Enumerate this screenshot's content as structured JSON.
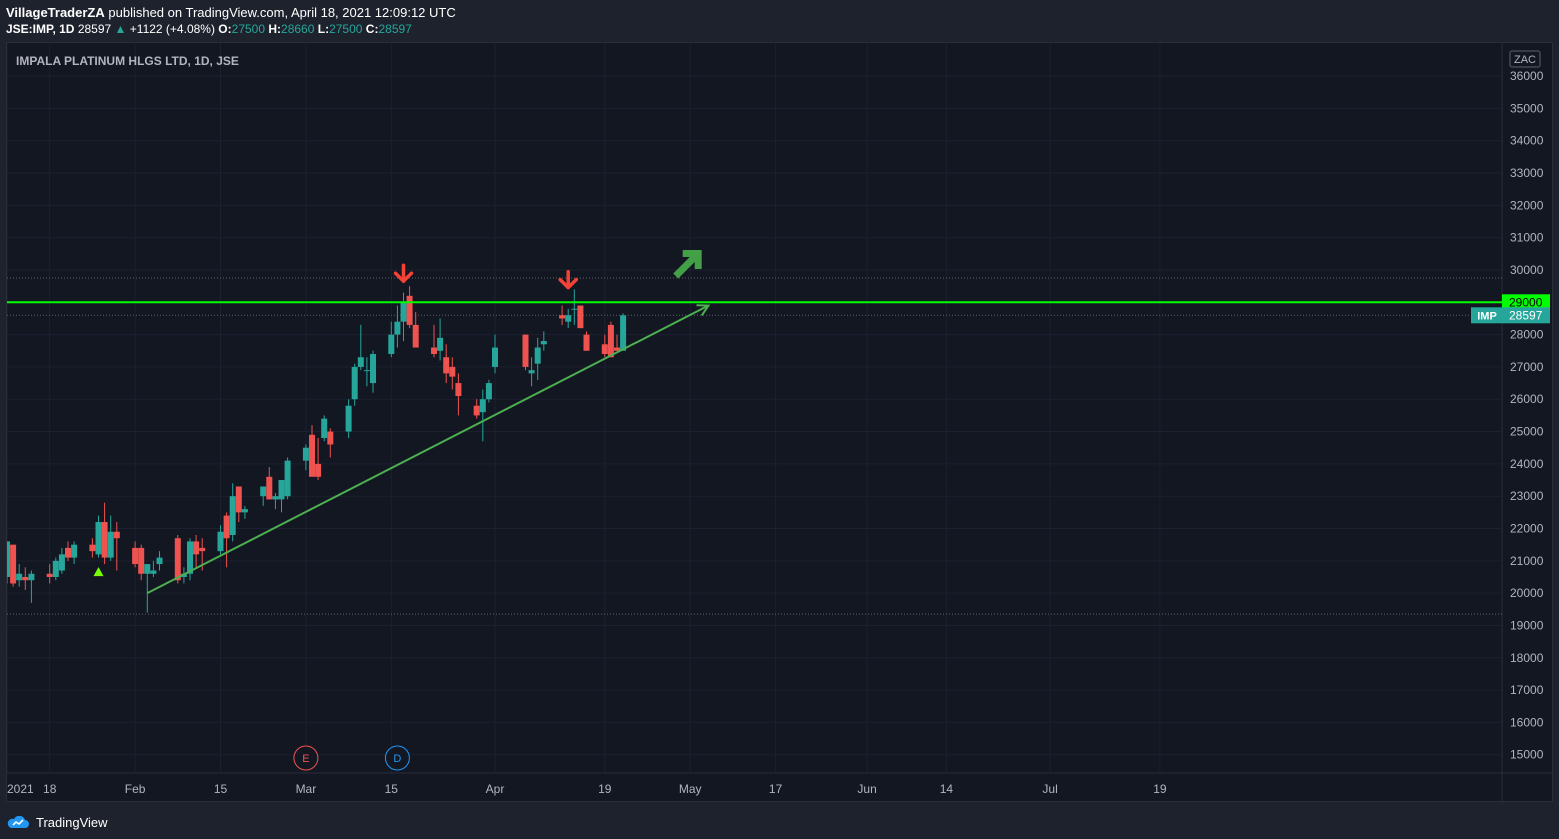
{
  "header": {
    "author": "VillageTraderZA",
    "published_text": "published on TradingView.com, April 18, 2021 12:09:12 UTC",
    "symbol": "JSE:IMP, 1D",
    "last": "28597",
    "change": "+1122 (+4.08%)",
    "o_label": "O:",
    "o_value": "27500",
    "h_label": "H:",
    "h_value": "28660",
    "l_label": "L:",
    "l_value": "27500",
    "c_label": "C:",
    "c_value": "28597"
  },
  "footer": {
    "brand": "TradingView"
  },
  "colors": {
    "up": "#26a69a",
    "down": "#ef5350",
    "background": "#131722",
    "resistance": "#00ff00",
    "trendline": "#4caf50",
    "arrow_down": "#f44336",
    "arrow_up": "#43a047"
  },
  "chart_data": {
    "type": "candlestick",
    "title": "IMPALA PLATINUM HLGS LTD, 1D, JSE",
    "currency": "ZAC",
    "ylim": [
      14500,
      36500
    ],
    "y_ticks": [
      15000,
      16000,
      17000,
      18000,
      19000,
      20000,
      21000,
      22000,
      23000,
      24000,
      25000,
      26000,
      27000,
      28000,
      29000,
      30000,
      31000,
      32000,
      33000,
      34000,
      35000,
      36000
    ],
    "x_tick_labels": [
      "2021",
      "18",
      "Feb",
      "15",
      "Mar",
      "15",
      "Apr",
      "19",
      "May",
      "17",
      "Jun",
      "14",
      "Jul",
      "19"
    ],
    "candles": [
      {
        "d": "2021-01-11",
        "o": 20500,
        "h": 21600,
        "l": 20300,
        "c": 21600
      },
      {
        "d": "2021-01-12",
        "o": 21500,
        "h": 21500,
        "l": 20200,
        "c": 20300
      },
      {
        "d": "2021-01-13",
        "o": 20400,
        "h": 20900,
        "l": 20200,
        "c": 20600
      },
      {
        "d": "2021-01-14",
        "o": 20500,
        "h": 20800,
        "l": 20100,
        "c": 20400
      },
      {
        "d": "2021-01-15",
        "o": 20400,
        "h": 20700,
        "l": 19700,
        "c": 20600
      },
      {
        "d": "2021-01-18",
        "o": 20600,
        "h": 20900,
        "l": 20300,
        "c": 20500
      },
      {
        "d": "2021-01-19",
        "o": 20500,
        "h": 21100,
        "l": 20400,
        "c": 21000
      },
      {
        "d": "2021-01-20",
        "o": 20700,
        "h": 21400,
        "l": 20600,
        "c": 21200
      },
      {
        "d": "2021-01-21",
        "o": 21400,
        "h": 21600,
        "l": 21000,
        "c": 21100
      },
      {
        "d": "2021-01-22",
        "o": 21100,
        "h": 21600,
        "l": 20900,
        "c": 21500
      },
      {
        "d": "2021-01-25",
        "o": 21500,
        "h": 21700,
        "l": 21100,
        "c": 21300
      },
      {
        "d": "2021-01-26",
        "o": 21200,
        "h": 22400,
        "l": 21100,
        "c": 22200
      },
      {
        "d": "2021-01-27",
        "o": 22200,
        "h": 22800,
        "l": 20900,
        "c": 21100
      },
      {
        "d": "2021-01-28",
        "o": 21100,
        "h": 22400,
        "l": 21000,
        "c": 21900
      },
      {
        "d": "2021-01-29",
        "o": 21900,
        "h": 22200,
        "l": 20700,
        "c": 21700
      },
      {
        "d": "2021-02-01",
        "o": 21400,
        "h": 21600,
        "l": 20800,
        "c": 20900
      },
      {
        "d": "2021-02-02",
        "o": 21400,
        "h": 21500,
        "l": 20400,
        "c": 20600
      },
      {
        "d": "2021-02-03",
        "o": 20600,
        "h": 20900,
        "l": 19400,
        "c": 20900
      },
      {
        "d": "2021-02-04",
        "o": 20600,
        "h": 21000,
        "l": 20500,
        "c": 20700
      },
      {
        "d": "2021-02-05",
        "o": 20900,
        "h": 21300,
        "l": 20700,
        "c": 21100
      },
      {
        "d": "2021-02-08",
        "o": 21700,
        "h": 21800,
        "l": 20300,
        "c": 20400
      },
      {
        "d": "2021-02-09",
        "o": 20500,
        "h": 20800,
        "l": 20300,
        "c": 20600
      },
      {
        "d": "2021-02-10",
        "o": 20600,
        "h": 21700,
        "l": 20400,
        "c": 21600
      },
      {
        "d": "2021-02-11",
        "o": 21600,
        "h": 21800,
        "l": 20800,
        "c": 21200
      },
      {
        "d": "2021-02-12",
        "o": 21400,
        "h": 21700,
        "l": 20700,
        "c": 21300
      },
      {
        "d": "2021-02-15",
        "o": 21300,
        "h": 22100,
        "l": 21200,
        "c": 21900
      },
      {
        "d": "2021-02-16",
        "o": 22400,
        "h": 22500,
        "l": 20800,
        "c": 21700
      },
      {
        "d": "2021-02-17",
        "o": 21800,
        "h": 23400,
        "l": 21600,
        "c": 23000
      },
      {
        "d": "2021-02-18",
        "o": 23300,
        "h": 23300,
        "l": 22200,
        "c": 22500
      },
      {
        "d": "2021-02-19",
        "o": 22500,
        "h": 22700,
        "l": 22300,
        "c": 22600
      },
      {
        "d": "2021-02-22",
        "o": 23000,
        "h": 23300,
        "l": 22700,
        "c": 23300
      },
      {
        "d": "2021-02-23",
        "o": 23600,
        "h": 23900,
        "l": 22900,
        "c": 22900
      },
      {
        "d": "2021-02-24",
        "o": 22900,
        "h": 23100,
        "l": 22600,
        "c": 23000
      },
      {
        "d": "2021-02-25",
        "o": 22900,
        "h": 23500,
        "l": 22500,
        "c": 23500
      },
      {
        "d": "2021-02-26",
        "o": 23000,
        "h": 24200,
        "l": 22900,
        "c": 24100
      },
      {
        "d": "2021-03-01",
        "o": 24100,
        "h": 24600,
        "l": 23800,
        "c": 24500
      },
      {
        "d": "2021-03-02",
        "o": 24900,
        "h": 25200,
        "l": 23700,
        "c": 23600
      },
      {
        "d": "2021-03-03",
        "o": 24000,
        "h": 24800,
        "l": 23500,
        "c": 23600
      },
      {
        "d": "2021-03-04",
        "o": 24800,
        "h": 25500,
        "l": 24700,
        "c": 25400
      },
      {
        "d": "2021-03-05",
        "o": 25000,
        "h": 25100,
        "l": 24200,
        "c": 24600
      },
      {
        "d": "2021-03-08",
        "o": 25000,
        "h": 26000,
        "l": 24800,
        "c": 25800
      },
      {
        "d": "2021-03-09",
        "o": 26000,
        "h": 27100,
        "l": 25800,
        "c": 27000
      },
      {
        "d": "2021-03-10",
        "o": 27000,
        "h": 28300,
        "l": 26900,
        "c": 27300
      },
      {
        "d": "2021-03-11",
        "o": 26900,
        "h": 27300,
        "l": 26400,
        "c": 26900
      },
      {
        "d": "2021-03-12",
        "o": 26500,
        "h": 27500,
        "l": 26200,
        "c": 27400
      },
      {
        "d": "2021-03-15",
        "o": 27400,
        "h": 28400,
        "l": 27300,
        "c": 28000
      },
      {
        "d": "2021-03-16",
        "o": 28000,
        "h": 28900,
        "l": 27600,
        "c": 28400
      },
      {
        "d": "2021-03-17",
        "o": 28400,
        "h": 29300,
        "l": 27800,
        "c": 29000
      },
      {
        "d": "2021-03-18",
        "o": 29200,
        "h": 29500,
        "l": 28200,
        "c": 28300
      },
      {
        "d": "2021-03-19",
        "o": 28300,
        "h": 28700,
        "l": 27700,
        "c": 27600
      },
      {
        "d": "2021-03-22",
        "o": 27600,
        "h": 28300,
        "l": 27300,
        "c": 27400
      },
      {
        "d": "2021-03-23",
        "o": 27500,
        "h": 28500,
        "l": 27200,
        "c": 27900
      },
      {
        "d": "2021-03-24",
        "o": 27300,
        "h": 27700,
        "l": 26500,
        "c": 26800
      },
      {
        "d": "2021-03-25",
        "o": 27000,
        "h": 27300,
        "l": 26300,
        "c": 26700
      },
      {
        "d": "2021-03-26",
        "o": 26500,
        "h": 26800,
        "l": 25500,
        "c": 26100
      },
      {
        "d": "2021-03-29",
        "o": 25800,
        "h": 26000,
        "l": 25400,
        "c": 25500
      },
      {
        "d": "2021-03-30",
        "o": 25600,
        "h": 26300,
        "l": 24700,
        "c": 26000
      },
      {
        "d": "2021-03-31",
        "o": 26000,
        "h": 26600,
        "l": 25900,
        "c": 26500
      },
      {
        "d": "2021-04-01",
        "o": 27000,
        "h": 28000,
        "l": 26800,
        "c": 27600
      },
      {
        "d": "2021-04-06",
        "o": 28000,
        "h": 28000,
        "l": 26900,
        "c": 27000
      },
      {
        "d": "2021-04-07",
        "o": 26800,
        "h": 27300,
        "l": 26400,
        "c": 26900
      },
      {
        "d": "2021-04-08",
        "o": 27100,
        "h": 27900,
        "l": 26600,
        "c": 27600
      },
      {
        "d": "2021-04-09",
        "o": 27700,
        "h": 28100,
        "l": 27500,
        "c": 27800
      },
      {
        "d": "2021-04-12",
        "o": 28600,
        "h": 28900,
        "l": 28300,
        "c": 28500
      },
      {
        "d": "2021-04-13",
        "o": 28400,
        "h": 28800,
        "l": 28200,
        "c": 28600
      },
      {
        "d": "2021-04-14",
        "o": 28800,
        "h": 29400,
        "l": 28300,
        "c": 28800
      },
      {
        "d": "2021-04-15",
        "o": 28900,
        "h": 28900,
        "l": 28200,
        "c": 28200
      },
      {
        "d": "2021-04-16",
        "o": 28000,
        "h": 28100,
        "l": 27500,
        "c": 27500
      },
      {
        "d": "2021-04-19",
        "o": 27700,
        "h": 28000,
        "l": 27300,
        "c": 27400
      },
      {
        "d": "2021-04-20",
        "o": 28300,
        "h": 28400,
        "l": 27300,
        "c": 27300
      },
      {
        "d": "2021-04-21",
        "o": 27600,
        "h": 28000,
        "l": 27500,
        "c": 27500
      },
      {
        "d": "2021-04-22",
        "o": 27500,
        "h": 28660,
        "l": 27500,
        "c": 28597
      }
    ],
    "annotations": {
      "resistance_level": 29000,
      "last_price": 28597,
      "last_price_label": "IMP",
      "upper_dotted_level": 29750,
      "lower_dotted_level": 19350,
      "trendline": {
        "from": [
          "2021-02-03",
          20000
        ],
        "to": [
          "2021-05-06",
          28900
        ]
      },
      "down_arrows": [
        {
          "d": "2021-03-17",
          "y": 29900
        },
        {
          "d": "2021-04-13",
          "y": 29700
        }
      ],
      "up_marker": {
        "d": "2021-01-26",
        "y": 20650
      },
      "big_up_arrow": {
        "d": "2021-05-03",
        "y": 30200
      },
      "event_markers": [
        {
          "d": "2021-03-01",
          "label": "E"
        },
        {
          "d": "2021-03-16",
          "label": "D"
        }
      ]
    }
  }
}
